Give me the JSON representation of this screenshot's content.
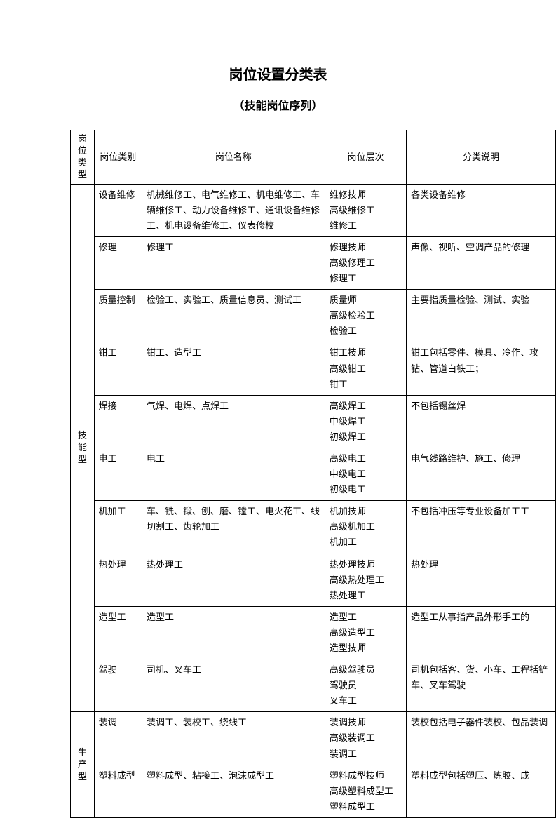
{
  "title": "岗位设置分类表",
  "subtitle": "（技能岗位序列）",
  "headers": {
    "col1": "岗位类型",
    "col2": "岗位类别",
    "col3": "岗位名称",
    "col4": "岗位层次",
    "col5": "分类说明"
  },
  "groups": [
    {
      "type_label": "技能型",
      "rows": [
        {
          "cat": "设备维修",
          "name": "机械维修工、电气维修工、机电维修工、车辆维修工、动力设备维修工、通讯设备维修工、机电设备维修工、仪表修校",
          "level": "维修技师\n高级维修工\n维修工",
          "desc": "各类设备维修"
        },
        {
          "cat": "修理",
          "name": "修理工",
          "level": "修理技师\n高级修理工\n修理工",
          "desc": "声像、视听、空调产品的修理"
        },
        {
          "cat": "质量控制",
          "name": "检验工、实验工、质量信息员、测试工",
          "level": "质量师\n高级检验工\n检验工",
          "desc": "主要指质量检验、测试、实验"
        },
        {
          "cat": "钳工",
          "name": "钳工、造型工",
          "level": "钳工技师\n高级钳工\n钳工",
          "desc": "钳工包括零件、模具、冷作、攻钻、管道白铁工；"
        },
        {
          "cat": "焊接",
          "name": "气焊、电焊、点焊工",
          "level": "高级焊工\n中级焊工\n初级焊工",
          "desc": "不包括锡丝焊"
        },
        {
          "cat": "电工",
          "name": "电工",
          "level": "高级电工\n中级电工\n初级电工",
          "desc": "电气线路维护、施工、修理"
        },
        {
          "cat": "机加工",
          "name": "车、铣、锻、刨、磨、镗工、电火花工、线切割工、齿轮加工",
          "level": "机加技师\n高级机加工\n机加工",
          "desc": "不包括冲压等专业设备加工工"
        },
        {
          "cat": "热处理",
          "name": "热处理工",
          "level": "热处理技师\n高级热处理工\n热处理工",
          "desc": "热处理"
        },
        {
          "cat": "造型工",
          "name": "造型工",
          "level": "造型工\n高级造型工\n造型技师",
          "desc": "造型工从事指产品外形手工的"
        },
        {
          "cat": "驾驶",
          "name": "司机、叉车工",
          "level": "高级驾驶员\n驾驶员\n叉车工",
          "desc": "司机包括客、货、小车、工程括铲车、叉车驾驶"
        }
      ]
    },
    {
      "type_label": "生产型",
      "rows": [
        {
          "cat": "装调",
          "name": "装调工、装校工、绕线工",
          "level": "装调技师\n高级装调工\n装调工",
          "desc": "装校包括电子器件装校、包品装调"
        },
        {
          "cat": "塑料成型",
          "name": "塑料成型、粘接工、泡沫成型工",
          "level": "塑料成型技师\n高级塑料成型工\n塑料成型工",
          "desc": "塑料成型包括塑压、炼胶、成"
        }
      ]
    }
  ]
}
